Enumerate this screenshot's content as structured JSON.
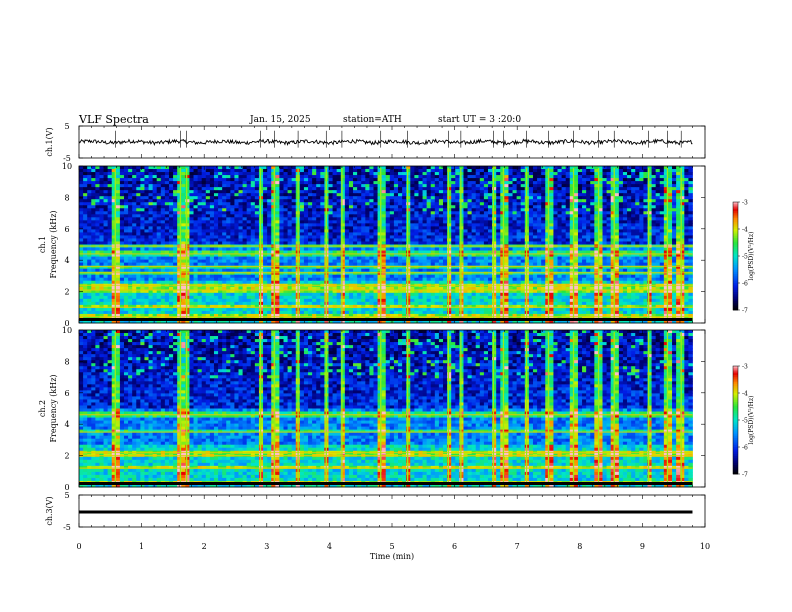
{
  "header": {
    "title": "VLF Spectra",
    "date": "Jan. 15, 2025",
    "station": "station=ATH",
    "start_time": "start UT = 3 :20:0"
  },
  "chart_data": [
    {
      "type": "line",
      "panel": "ch1-waveform",
      "ylabel": "ch.1(V)",
      "yticks": [
        "5",
        "-5"
      ],
      "ylim": [
        -5,
        5
      ],
      "xlim": [
        0,
        10
      ],
      "x_extent_min": 9.8,
      "trace_mean": 0.0,
      "trace_noise_amplitude": 1.2,
      "spike_amplitude": 3.5
    },
    {
      "type": "heatmap",
      "panel": "ch1-spectrogram",
      "ylabel": "ch.1 Frequency (kHz)",
      "yticks": [
        "0",
        "2",
        "4",
        "6",
        "8",
        "10"
      ],
      "ylim": [
        0,
        10
      ],
      "xlim": [
        0,
        10
      ],
      "x_extent_min": 9.8,
      "colorbar": {
        "label": "log(PSD)(V²/Hz)",
        "ticks": [
          "-3",
          "-4",
          "-5",
          "-6",
          "-7"
        ],
        "range": [
          -7,
          -3
        ]
      },
      "bands_khz": [
        0.4,
        1.0,
        2.1,
        2.4,
        3.2,
        3.6,
        4.4,
        4.9
      ],
      "sferic_times_min": [
        0.58,
        1.62,
        1.72,
        2.9,
        3.12,
        3.5,
        3.95,
        4.2,
        4.82,
        5.25,
        5.9,
        6.1,
        6.62,
        6.78,
        7.15,
        7.5,
        7.9,
        8.3,
        8.55,
        9.1,
        9.4,
        9.62
      ]
    },
    {
      "type": "heatmap",
      "panel": "ch2-spectrogram",
      "ylabel": "ch.2 Frequency (kHz)",
      "yticks": [
        "0",
        "2",
        "4",
        "6",
        "8",
        "10"
      ],
      "ylim": [
        0,
        10
      ],
      "xlim": [
        0,
        10
      ],
      "x_extent_min": 9.8,
      "colorbar": {
        "label": "log(PSD)(V²/Hz)",
        "ticks": [
          "-3",
          "-4",
          "-5",
          "-6",
          "-7"
        ],
        "range": [
          -7,
          -3
        ]
      },
      "bands_khz": [
        0.3,
        1.2,
        2.0,
        2.2,
        3.5,
        4.6
      ],
      "sferic_times_min": [
        0.58,
        1.62,
        1.72,
        2.9,
        3.12,
        3.5,
        3.95,
        4.2,
        4.82,
        5.25,
        5.9,
        6.1,
        6.62,
        6.78,
        7.15,
        7.5,
        7.9,
        8.3,
        8.55,
        9.1,
        9.4,
        9.62
      ]
    },
    {
      "type": "line",
      "panel": "ch3-waveform",
      "ylabel": "ch.3(V)",
      "yticks": [
        "5",
        "-5"
      ],
      "ylim": [
        -5,
        5
      ],
      "xlim": [
        0,
        10
      ],
      "x_extent_min": 9.8,
      "trace_mean": -0.3,
      "xlabel": "Time (min)",
      "xticks": [
        "0",
        "1",
        "2",
        "3",
        "4",
        "5",
        "6",
        "7",
        "8",
        "9",
        "10"
      ]
    }
  ]
}
